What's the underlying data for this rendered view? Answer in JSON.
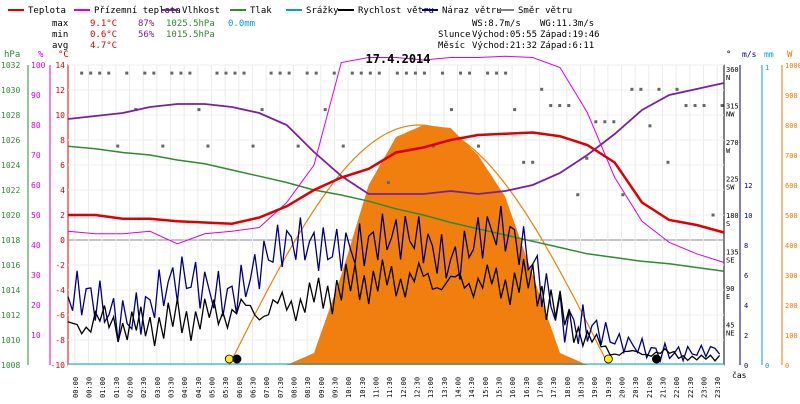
{
  "chart_data": {
    "type": "line",
    "title": "17.4.2014",
    "legend": [
      {
        "label": "Teplota",
        "color": "#dd0000"
      },
      {
        "label": "Přízemní teplota",
        "color": "#dd00dd"
      },
      {
        "label": "Vlhkost",
        "color": "#7a1fa2"
      },
      {
        "label": "Tlak",
        "color": "#2e8b2e"
      },
      {
        "label": "Srážky",
        "color": "#00a0d0"
      },
      {
        "label": "Rychlost větru",
        "color": "#000000"
      },
      {
        "label": "Náraz větru",
        "color": "#000080"
      },
      {
        "label": "Směr větru",
        "color": "#808080"
      }
    ],
    "stats": {
      "max": {
        "label": "max",
        "temp": "9.1°C",
        "hum": "87%",
        "press": "1025.5hPa",
        "rain": "0.0mm"
      },
      "min": {
        "label": "min",
        "temp": "0.6°C",
        "hum": "56%",
        "press": "1015.5hPa"
      },
      "avg": {
        "label": "avg",
        "temp": "4.7°C"
      }
    },
    "wind_info": {
      "ws": "WS:8.7m/s",
      "wg": "WG:11.3m/s"
    },
    "sun_info": {
      "label": "Slunce",
      "rise": "Východ:05:55",
      "set": "Západ:19:46"
    },
    "moon_info": {
      "label": "Měsíc",
      "rise": "Východ:21:32",
      "set": "Západ:6:11"
    },
    "axes": {
      "hpa_label": "hPa",
      "pct_label": "%",
      "c_label": "°C",
      "deg_label": "°",
      "ms_label": "m/s",
      "mm_label": "mm",
      "w_label": "W",
      "x_label": "čas",
      "hpa_ticks": [
        "1032",
        "1030",
        "1028",
        "1026",
        "1024",
        "1022",
        "1020",
        "1018",
        "1016",
        "1014",
        "1012",
        "1010",
        "1008"
      ],
      "pct_ticks": [
        "100",
        "90",
        "80",
        "70",
        "60",
        "50",
        "40",
        "30",
        "20",
        "10"
      ],
      "c_ticks": [
        "14",
        "12",
        "10",
        "8",
        "6",
        "4",
        "2",
        "0",
        "-2",
        "-4",
        "-6",
        "-8",
        "-10"
      ],
      "dir_ticks": [
        {
          "deg": "360",
          "dir": "N"
        },
        {
          "deg": "315",
          "dir": "NW"
        },
        {
          "deg": "270",
          "dir": "W"
        },
        {
          "deg": "225",
          "dir": "SW"
        },
        {
          "deg": "180",
          "dir": "S"
        },
        {
          "deg": "135",
          "dir": "SE"
        },
        {
          "deg": "90",
          "dir": "E"
        },
        {
          "deg": "45",
          "dir": "NE"
        }
      ],
      "ms_ticks": [
        "12",
        "10",
        "8",
        "6",
        "4",
        "2",
        "0"
      ],
      "mm_ticks": [
        "1",
        "0"
      ],
      "w_ticks": [
        "1000",
        "900",
        "800",
        "700",
        "600",
        "500",
        "400",
        "300",
        "200",
        "100",
        "0"
      ],
      "x_ticks": [
        "00:00",
        "00:30",
        "01:00",
        "01:30",
        "02:00",
        "02:30",
        "03:00",
        "03:30",
        "04:00",
        "04:30",
        "05:00",
        "05:30",
        "06:00",
        "06:30",
        "07:00",
        "07:30",
        "08:00",
        "08:30",
        "09:00",
        "09:30",
        "10:00",
        "10:30",
        "11:00",
        "11:30",
        "12:00",
        "12:30",
        "13:00",
        "13:30",
        "14:00",
        "14:30",
        "15:00",
        "15:30",
        "16:00",
        "16:30",
        "17:00",
        "17:30",
        "18:00",
        "18:30",
        "19:00",
        "19:30",
        "20:00",
        "20:30",
        "21:00",
        "21:30",
        "22:00",
        "22:30",
        "23:00",
        "23:30"
      ]
    },
    "series_x_hours": [
      0,
      1,
      2,
      3,
      4,
      5,
      6,
      7,
      8,
      9,
      10,
      11,
      12,
      13,
      14,
      15,
      16,
      17,
      18,
      19,
      20,
      21,
      22,
      23,
      24
    ],
    "temperature_c": [
      2.0,
      2.0,
      1.7,
      1.7,
      1.5,
      1.4,
      1.3,
      1.8,
      2.7,
      4.0,
      5.0,
      5.7,
      7.0,
      7.4,
      8.0,
      8.4,
      8.5,
      8.6,
      8.3,
      7.6,
      6.2,
      3.0,
      1.6,
      1.2,
      0.6
    ],
    "ground_temperature_c": [
      0.7,
      0.5,
      0.5,
      0.7,
      -0.3,
      0.5,
      0.7,
      1.0,
      3.0,
      6.0,
      14.2,
      14.6,
      14.6,
      14.4,
      14.6,
      14.6,
      14.7,
      14.6,
      13.8,
      10.2,
      5.0,
      1.5,
      -0.2,
      -1.1,
      -1.8
    ],
    "humidity_pct": [
      82,
      83,
      84,
      86,
      87,
      87,
      86,
      84,
      80,
      71,
      63,
      57,
      57,
      57,
      58,
      57,
      58,
      60,
      64,
      70,
      77,
      85,
      90,
      92,
      94
    ],
    "pressure_hpa": [
      1025.5,
      1025.3,
      1025.0,
      1024.8,
      1024.4,
      1024.1,
      1023.6,
      1023.1,
      1022.6,
      1022.0,
      1021.6,
      1021.1,
      1020.5,
      1020.0,
      1019.4,
      1018.9,
      1018.4,
      1017.9,
      1017.4,
      1016.9,
      1016.6,
      1016.3,
      1016.1,
      1015.8,
      1015.5
    ],
    "rain_mm": [
      0,
      0,
      0,
      0,
      0,
      0,
      0,
      0,
      0,
      0,
      0,
      0,
      0,
      0,
      0,
      0,
      0,
      0,
      0,
      0,
      0,
      0,
      0,
      0,
      0
    ],
    "wind_speed_ms": [
      2.4,
      3.0,
      2.6,
      2.6,
      3.0,
      3.2,
      3.6,
      3.6,
      4.0,
      4.4,
      5.2,
      5.6,
      5.6,
      5.8,
      5.4,
      5.6,
      5.4,
      5.6,
      3.4,
      1.8,
      0.8,
      0.8,
      0.8,
      0.4,
      0.6
    ],
    "wind_gust_ms": [
      3.6,
      4.4,
      4.0,
      4.0,
      4.8,
      5.2,
      5.6,
      6.6,
      7.2,
      8.0,
      8.8,
      8.0,
      7.6,
      8.4,
      7.8,
      8.4,
      8.0,
      7.0,
      4.2,
      2.4,
      1.2,
      1.2,
      1.2,
      0.8,
      0.8
    ],
    "solar_w": [
      0,
      0,
      0,
      0,
      0,
      0,
      0,
      0,
      0,
      40,
      300,
      600,
      760,
      800,
      790,
      700,
      560,
      300,
      40,
      0,
      0,
      0,
      0,
      0,
      0
    ],
    "solar_theoretical_peak_w": 800,
    "wind_dir_deg": [
      360,
      360,
      360,
      360,
      360,
      360,
      360,
      360,
      360,
      360,
      360,
      360,
      360,
      360,
      360,
      360,
      360,
      340,
      320,
      300,
      300,
      340,
      340,
      320,
      320
    ]
  }
}
